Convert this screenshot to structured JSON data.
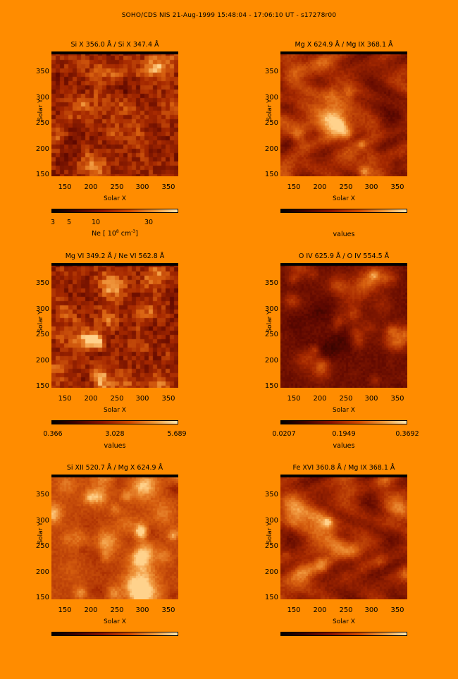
{
  "title": "SOHO/CDS NIS  21-Aug-1999 15:48:04 - 17:06:10 UT - s17278r00",
  "axes": {
    "x_label": "Solar X",
    "y_label": "Solar Y",
    "x_ticks": [
      "150",
      "200",
      "250",
      "300",
      "350"
    ],
    "y_ticks": [
      "350",
      "300",
      "250",
      "200",
      "150"
    ]
  },
  "panels": [
    {
      "title": "Si X  356.0 Å / Si X  347.4 Å",
      "colorbar_ticks": [
        "3",
        "5",
        "10",
        "30"
      ],
      "colorbar_label_main": "Ne  [ 10",
      "colorbar_label_exp": "8",
      "colorbar_label_unit": " cm",
      "colorbar_label_unit_exp": "-3",
      "colorbar_label_end": "]"
    },
    {
      "title": "Mg X  624.9 Å / Mg IX  368.1 Å",
      "colorbar_ticks": [],
      "colorbar_label": "values"
    },
    {
      "title": "Mg VI  349.2 Å / Ne VI  562.8 Å",
      "colorbar_ticks": [
        "0.366",
        "3.028",
        "5.689"
      ],
      "colorbar_label": "values"
    },
    {
      "title": "O IV  625.9 Å / O IV  554.5 Å",
      "colorbar_ticks": [
        "0.0207",
        "0.1949",
        "0.3692"
      ],
      "colorbar_label": "values"
    },
    {
      "title": "Si XII  520.7 Å / Mg X  624.9 Å",
      "colorbar_ticks": [],
      "colorbar_label": ""
    },
    {
      "title": "Fe XVI  360.8 Å / Mg IX  368.1 Å",
      "colorbar_ticks": [],
      "colorbar_label": ""
    }
  ]
}
